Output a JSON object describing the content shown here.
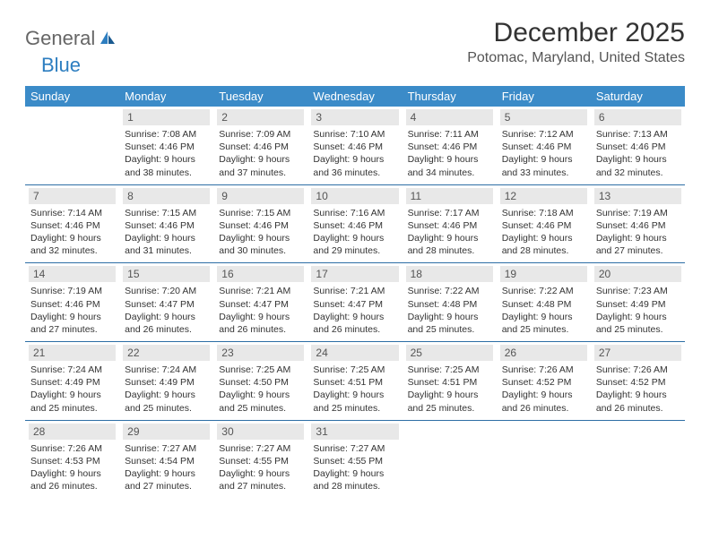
{
  "logo": {
    "text1": "General",
    "text2": "Blue"
  },
  "title": "December 2025",
  "location": "Potomac, Maryland, United States",
  "header_bg": "#3b8bc8",
  "week_divider_color": "#2d6ea5",
  "daynum_bg": "#e8e8e8",
  "day_headers": [
    "Sunday",
    "Monday",
    "Tuesday",
    "Wednesday",
    "Thursday",
    "Friday",
    "Saturday"
  ],
  "weeks": [
    [
      {
        "n": "",
        "sr": "",
        "ss": "",
        "dl": ""
      },
      {
        "n": "1",
        "sr": "7:08 AM",
        "ss": "4:46 PM",
        "dl": "9 hours and 38 minutes."
      },
      {
        "n": "2",
        "sr": "7:09 AM",
        "ss": "4:46 PM",
        "dl": "9 hours and 37 minutes."
      },
      {
        "n": "3",
        "sr": "7:10 AM",
        "ss": "4:46 PM",
        "dl": "9 hours and 36 minutes."
      },
      {
        "n": "4",
        "sr": "7:11 AM",
        "ss": "4:46 PM",
        "dl": "9 hours and 34 minutes."
      },
      {
        "n": "5",
        "sr": "7:12 AM",
        "ss": "4:46 PM",
        "dl": "9 hours and 33 minutes."
      },
      {
        "n": "6",
        "sr": "7:13 AM",
        "ss": "4:46 PM",
        "dl": "9 hours and 32 minutes."
      }
    ],
    [
      {
        "n": "7",
        "sr": "7:14 AM",
        "ss": "4:46 PM",
        "dl": "9 hours and 32 minutes."
      },
      {
        "n": "8",
        "sr": "7:15 AM",
        "ss": "4:46 PM",
        "dl": "9 hours and 31 minutes."
      },
      {
        "n": "9",
        "sr": "7:15 AM",
        "ss": "4:46 PM",
        "dl": "9 hours and 30 minutes."
      },
      {
        "n": "10",
        "sr": "7:16 AM",
        "ss": "4:46 PM",
        "dl": "9 hours and 29 minutes."
      },
      {
        "n": "11",
        "sr": "7:17 AM",
        "ss": "4:46 PM",
        "dl": "9 hours and 28 minutes."
      },
      {
        "n": "12",
        "sr": "7:18 AM",
        "ss": "4:46 PM",
        "dl": "9 hours and 28 minutes."
      },
      {
        "n": "13",
        "sr": "7:19 AM",
        "ss": "4:46 PM",
        "dl": "9 hours and 27 minutes."
      }
    ],
    [
      {
        "n": "14",
        "sr": "7:19 AM",
        "ss": "4:46 PM",
        "dl": "9 hours and 27 minutes."
      },
      {
        "n": "15",
        "sr": "7:20 AM",
        "ss": "4:47 PM",
        "dl": "9 hours and 26 minutes."
      },
      {
        "n": "16",
        "sr": "7:21 AM",
        "ss": "4:47 PM",
        "dl": "9 hours and 26 minutes."
      },
      {
        "n": "17",
        "sr": "7:21 AM",
        "ss": "4:47 PM",
        "dl": "9 hours and 26 minutes."
      },
      {
        "n": "18",
        "sr": "7:22 AM",
        "ss": "4:48 PM",
        "dl": "9 hours and 25 minutes."
      },
      {
        "n": "19",
        "sr": "7:22 AM",
        "ss": "4:48 PM",
        "dl": "9 hours and 25 minutes."
      },
      {
        "n": "20",
        "sr": "7:23 AM",
        "ss": "4:49 PM",
        "dl": "9 hours and 25 minutes."
      }
    ],
    [
      {
        "n": "21",
        "sr": "7:24 AM",
        "ss": "4:49 PM",
        "dl": "9 hours and 25 minutes."
      },
      {
        "n": "22",
        "sr": "7:24 AM",
        "ss": "4:49 PM",
        "dl": "9 hours and 25 minutes."
      },
      {
        "n": "23",
        "sr": "7:25 AM",
        "ss": "4:50 PM",
        "dl": "9 hours and 25 minutes."
      },
      {
        "n": "24",
        "sr": "7:25 AM",
        "ss": "4:51 PM",
        "dl": "9 hours and 25 minutes."
      },
      {
        "n": "25",
        "sr": "7:25 AM",
        "ss": "4:51 PM",
        "dl": "9 hours and 25 minutes."
      },
      {
        "n": "26",
        "sr": "7:26 AM",
        "ss": "4:52 PM",
        "dl": "9 hours and 26 minutes."
      },
      {
        "n": "27",
        "sr": "7:26 AM",
        "ss": "4:52 PM",
        "dl": "9 hours and 26 minutes."
      }
    ],
    [
      {
        "n": "28",
        "sr": "7:26 AM",
        "ss": "4:53 PM",
        "dl": "9 hours and 26 minutes."
      },
      {
        "n": "29",
        "sr": "7:27 AM",
        "ss": "4:54 PM",
        "dl": "9 hours and 27 minutes."
      },
      {
        "n": "30",
        "sr": "7:27 AM",
        "ss": "4:55 PM",
        "dl": "9 hours and 27 minutes."
      },
      {
        "n": "31",
        "sr": "7:27 AM",
        "ss": "4:55 PM",
        "dl": "9 hours and 28 minutes."
      },
      {
        "n": "",
        "sr": "",
        "ss": "",
        "dl": ""
      },
      {
        "n": "",
        "sr": "",
        "ss": "",
        "dl": ""
      },
      {
        "n": "",
        "sr": "",
        "ss": "",
        "dl": ""
      }
    ]
  ],
  "labels": {
    "sunrise": "Sunrise:",
    "sunset": "Sunset:",
    "daylight": "Daylight:"
  }
}
